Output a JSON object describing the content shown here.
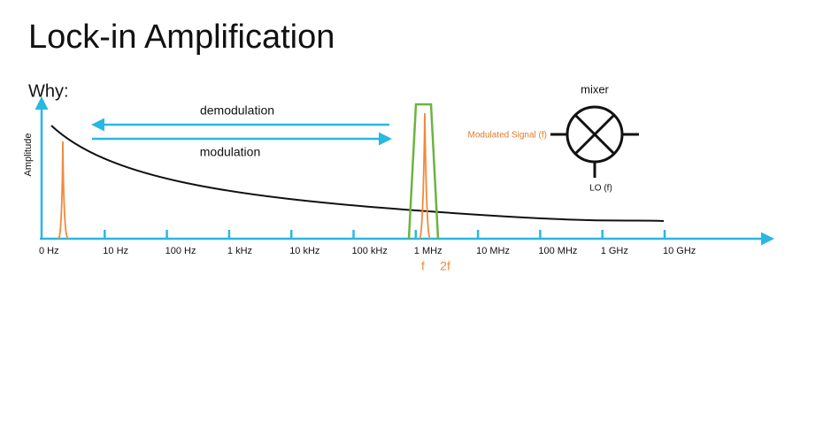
{
  "title": "Lock-in Amplification",
  "subtitle": "Why:",
  "y_axis_label": "Amplitude",
  "x_tick_labels": [
    "0 Hz",
    "10 Hz",
    "100 Hz",
    "1 kHz",
    "10 kHz",
    "100 kHz",
    "1 MHz",
    "10 MHz",
    "100 MHz",
    "1 GHz",
    "10 GHz"
  ],
  "arrows": {
    "demodulation": "demodulation",
    "modulation": "modulation"
  },
  "markers": {
    "f": "f",
    "two_f": "2f"
  },
  "mixer": {
    "label": "mixer",
    "input": "Modulated Signal (f)",
    "lo": "LO (f)"
  }
}
